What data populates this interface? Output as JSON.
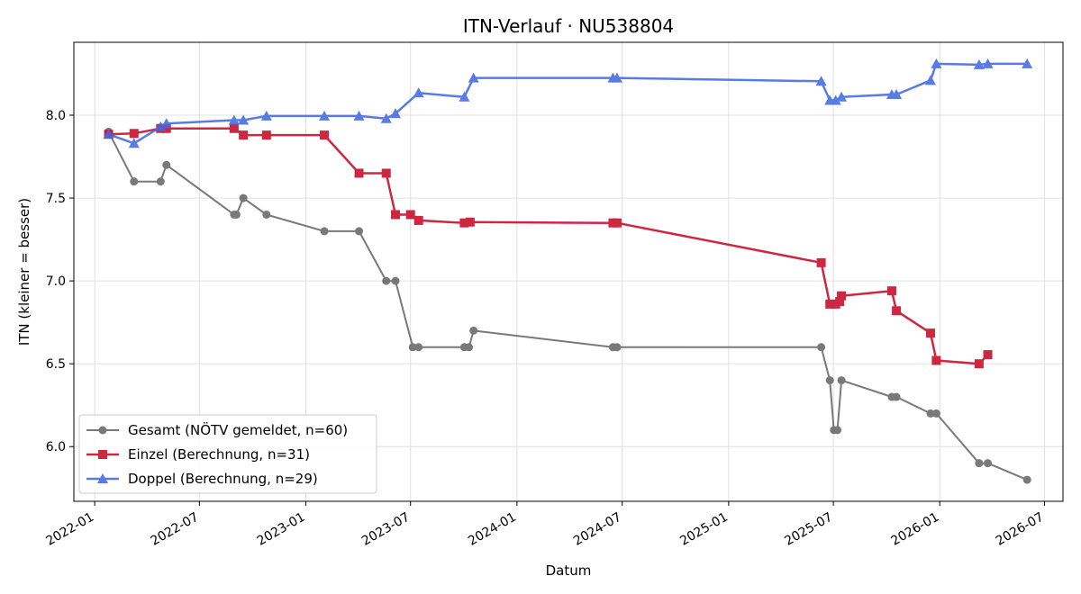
{
  "chart_data": {
    "type": "line",
    "title": "ITN-Verlauf · NU538804",
    "xlabel": "Datum",
    "ylabel": "ITN  (kleiner = besser)",
    "x_axis_type": "date",
    "xlim": [
      "2021-11-26",
      "2026-08-02"
    ],
    "ylim": [
      5.67,
      8.44
    ],
    "x_ticks": [
      "2022-01",
      "2022-07",
      "2023-01",
      "2023-07",
      "2024-01",
      "2024-07",
      "2025-01",
      "2025-07",
      "2026-01",
      "2026-07"
    ],
    "y_ticks": [
      "6.0",
      "6.5",
      "7.0",
      "7.5",
      "8.0"
    ],
    "grid": true,
    "legend_position": "lower-left",
    "series": [
      {
        "name": "Gesamt (NÖTV gemeldet, n=60)",
        "color": "#4d4d4d",
        "marker": "circle",
        "points": [
          [
            "2022-01-25",
            7.9
          ],
          [
            "2022-03-10",
            7.6
          ],
          [
            "2022-04-25",
            7.6
          ],
          [
            "2022-05-05",
            7.7
          ],
          [
            "2022-08-30",
            7.4
          ],
          [
            "2022-09-03",
            7.4
          ],
          [
            "2022-09-15",
            7.5
          ],
          [
            "2022-10-25",
            7.4
          ],
          [
            "2023-02-02",
            7.3
          ],
          [
            "2023-04-03",
            7.3
          ],
          [
            "2023-05-20",
            7.0
          ],
          [
            "2023-06-05",
            7.0
          ],
          [
            "2023-07-05",
            6.6
          ],
          [
            "2023-07-15",
            6.6
          ],
          [
            "2023-10-02",
            6.6
          ],
          [
            "2023-10-10",
            6.6
          ],
          [
            "2023-10-18",
            6.7
          ],
          [
            "2024-06-15",
            6.6
          ],
          [
            "2024-06-22",
            6.6
          ],
          [
            "2025-06-10",
            6.6
          ],
          [
            "2025-06-25",
            6.4
          ],
          [
            "2025-07-02",
            6.1
          ],
          [
            "2025-07-08",
            6.1
          ],
          [
            "2025-07-15",
            6.4
          ],
          [
            "2025-10-10",
            6.3
          ],
          [
            "2025-10-18",
            6.3
          ],
          [
            "2025-12-16",
            6.2
          ],
          [
            "2025-12-26",
            6.2
          ],
          [
            "2026-03-10",
            5.9
          ],
          [
            "2026-03-25",
            5.9
          ],
          [
            "2026-06-01",
            5.8
          ]
        ]
      },
      {
        "name": "Einzel (Berechnung, n=31)",
        "color": "#c8102e",
        "marker": "square",
        "points": [
          [
            "2022-01-25",
            7.885
          ],
          [
            "2022-03-10",
            7.89
          ],
          [
            "2022-04-25",
            7.92
          ],
          [
            "2022-05-05",
            7.92
          ],
          [
            "2022-08-30",
            7.92
          ],
          [
            "2022-09-15",
            7.88
          ],
          [
            "2022-10-25",
            7.88
          ],
          [
            "2023-02-02",
            7.88
          ],
          [
            "2023-04-03",
            7.65
          ],
          [
            "2023-05-20",
            7.65
          ],
          [
            "2023-06-05",
            7.4
          ],
          [
            "2023-07-01",
            7.4
          ],
          [
            "2023-07-15",
            7.365
          ],
          [
            "2023-10-02",
            7.35
          ],
          [
            "2023-10-12",
            7.355
          ],
          [
            "2024-06-15",
            7.35
          ],
          [
            "2024-06-22",
            7.35
          ],
          [
            "2025-06-10",
            7.11
          ],
          [
            "2025-06-25",
            6.86
          ],
          [
            "2025-07-05",
            6.86
          ],
          [
            "2025-07-12",
            6.875
          ],
          [
            "2025-07-15",
            6.91
          ],
          [
            "2025-10-10",
            6.94
          ],
          [
            "2025-10-18",
            6.82
          ],
          [
            "2025-12-16",
            6.685
          ],
          [
            "2025-12-26",
            6.52
          ],
          [
            "2026-03-10",
            6.5
          ],
          [
            "2026-03-25",
            6.555
          ]
        ]
      },
      {
        "name": "Doppel (Berechnung, n=29)",
        "color": "#4169e1",
        "marker": "triangle",
        "points": [
          [
            "2022-01-25",
            7.885
          ],
          [
            "2022-03-10",
            7.83
          ],
          [
            "2022-04-25",
            7.93
          ],
          [
            "2022-05-05",
            7.95
          ],
          [
            "2022-08-30",
            7.97
          ],
          [
            "2022-09-15",
            7.97
          ],
          [
            "2022-10-25",
            7.995
          ],
          [
            "2023-02-02",
            7.995
          ],
          [
            "2023-04-03",
            7.995
          ],
          [
            "2023-05-20",
            7.98
          ],
          [
            "2023-06-05",
            8.01
          ],
          [
            "2023-07-15",
            8.135
          ],
          [
            "2023-10-02",
            8.11
          ],
          [
            "2023-10-18",
            8.225
          ],
          [
            "2024-06-15",
            8.225
          ],
          [
            "2024-06-22",
            8.225
          ],
          [
            "2025-06-10",
            8.205
          ],
          [
            "2025-06-25",
            8.09
          ],
          [
            "2025-07-05",
            8.09
          ],
          [
            "2025-07-15",
            8.11
          ],
          [
            "2025-10-10",
            8.125
          ],
          [
            "2025-10-18",
            8.125
          ],
          [
            "2025-12-16",
            8.21
          ],
          [
            "2025-12-26",
            8.31
          ],
          [
            "2026-03-10",
            8.305
          ],
          [
            "2026-03-25",
            8.31
          ],
          [
            "2026-06-01",
            8.31
          ]
        ]
      }
    ]
  }
}
